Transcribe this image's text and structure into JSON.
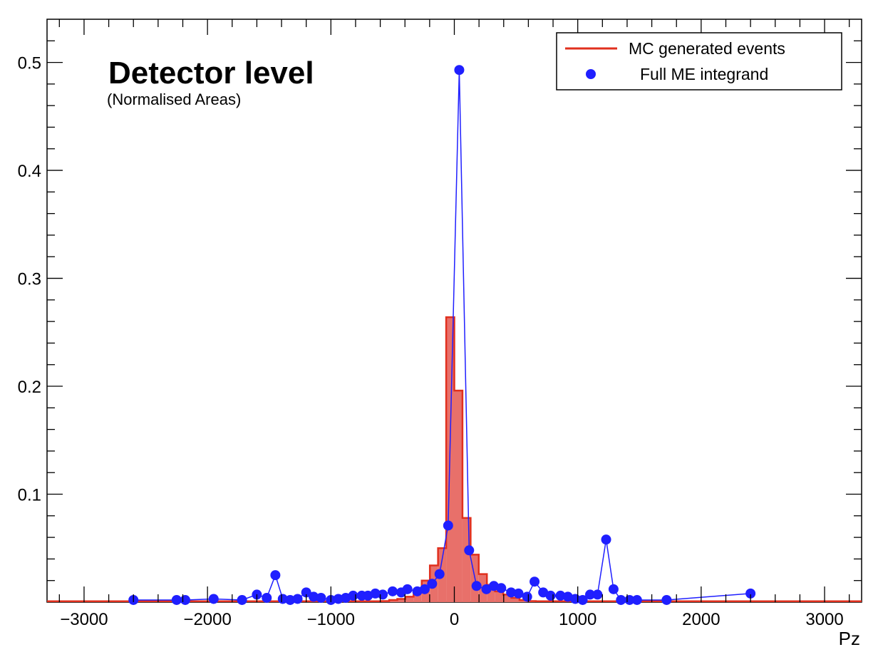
{
  "chart_data": {
    "type": "histogram-with-points",
    "title": "Detector level",
    "subtitle": "(Normalised Areas)",
    "xlabel": "Pz",
    "ylabel": "",
    "xlim": [
      -3300,
      3300
    ],
    "ylim": [
      0,
      0.54
    ],
    "x_ticks": [
      -3000,
      -2000,
      -1000,
      0,
      1000,
      2000,
      3000
    ],
    "x_tick_labels": [
      "−3000",
      "−2000",
      "−1000",
      "0",
      "1000",
      "2000",
      "3000"
    ],
    "y_ticks": [
      0.1,
      0.2,
      0.3,
      0.4,
      0.5
    ],
    "y_tick_labels": [
      "0.1",
      "0.2",
      "0.3",
      "0.4",
      "0.5"
    ],
    "grid": false,
    "legend_position": "top-right",
    "colors": {
      "mc_line": "#e0301e",
      "mc_fill": "#e8706a",
      "me_points": "#1f1fff",
      "axis": "#000000"
    },
    "series": [
      {
        "name": "MC generated events",
        "type": "step-histogram",
        "bin_width": 66,
        "bins": [
          {
            "x": -561,
            "y": 0.001
          },
          {
            "x": -495,
            "y": 0.002
          },
          {
            "x": -429,
            "y": 0.003
          },
          {
            "x": -363,
            "y": 0.005
          },
          {
            "x": -297,
            "y": 0.01
          },
          {
            "x": -231,
            "y": 0.02
          },
          {
            "x": -165,
            "y": 0.034
          },
          {
            "x": -99,
            "y": 0.05
          },
          {
            "x": -33,
            "y": 0.264
          },
          {
            "x": 33,
            "y": 0.196
          },
          {
            "x": 99,
            "y": 0.078
          },
          {
            "x": 165,
            "y": 0.044
          },
          {
            "x": 231,
            "y": 0.026
          },
          {
            "x": 297,
            "y": 0.016
          },
          {
            "x": 363,
            "y": 0.01
          },
          {
            "x": 429,
            "y": 0.007
          },
          {
            "x": 495,
            "y": 0.004
          },
          {
            "x": 561,
            "y": 0.002
          },
          {
            "x": 627,
            "y": 0.001
          }
        ]
      },
      {
        "name": "Full ME integrand",
        "type": "line-markers",
        "x": [
          -2600,
          -2250,
          -2180,
          -1950,
          -1720,
          -1600,
          -1520,
          -1450,
          -1390,
          -1330,
          -1270,
          -1200,
          -1140,
          -1080,
          -1000,
          -940,
          -880,
          -820,
          -750,
          -700,
          -640,
          -580,
          -500,
          -430,
          -380,
          -300,
          -240,
          -180,
          -120,
          -50,
          40,
          120,
          180,
          260,
          320,
          380,
          460,
          520,
          590,
          650,
          720,
          780,
          860,
          920,
          980,
          1040,
          1100,
          1160,
          1230,
          1290,
          1350,
          1420,
          1480,
          1720,
          2400
        ],
        "y": [
          0.002,
          0.002,
          0.002,
          0.003,
          0.002,
          0.007,
          0.004,
          0.025,
          0.003,
          0.002,
          0.003,
          0.009,
          0.005,
          0.004,
          0.002,
          0.003,
          0.004,
          0.006,
          0.006,
          0.006,
          0.008,
          0.007,
          0.01,
          0.009,
          0.012,
          0.01,
          0.012,
          0.017,
          0.026,
          0.071,
          0.493,
          0.048,
          0.015,
          0.012,
          0.015,
          0.013,
          0.009,
          0.008,
          0.005,
          0.019,
          0.009,
          0.006,
          0.006,
          0.005,
          0.003,
          0.002,
          0.007,
          0.007,
          0.058,
          0.012,
          0.002,
          0.002,
          0.002,
          0.002,
          0.008
        ]
      }
    ]
  }
}
